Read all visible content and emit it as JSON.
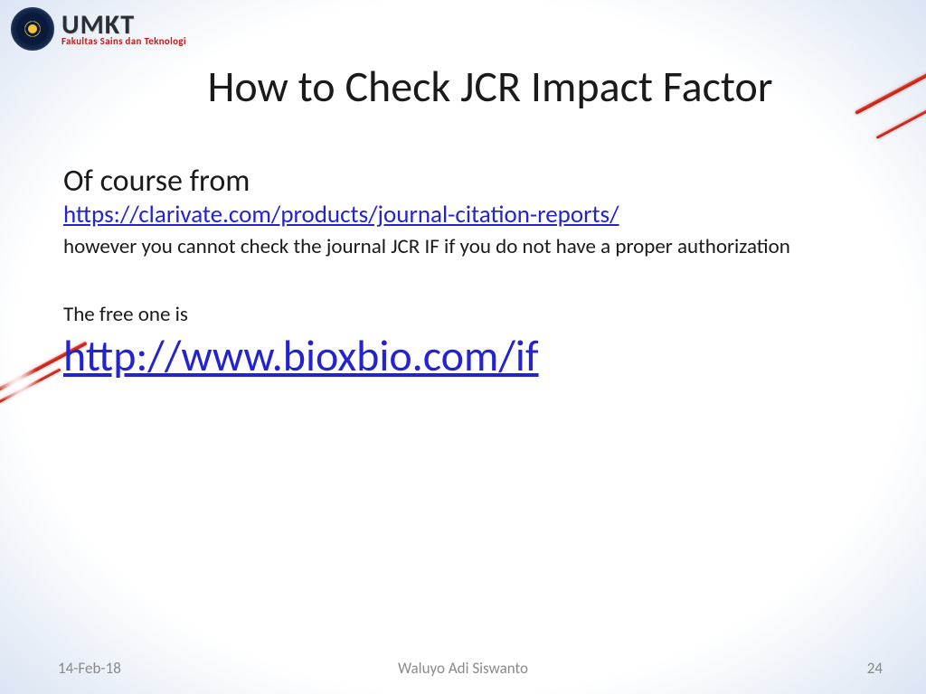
{
  "logo": {
    "main": "UMKT",
    "sub": "Fakultas Sains dan Teknologi"
  },
  "title": "How to Check JCR Impact Factor",
  "content": {
    "lead": "Of course from",
    "link1_text": "https://clarivate.com/products/journal-citation-reports/",
    "note": "however you cannot check the journal JCR IF if you do not have a proper authorization",
    "lead2": "The free one is",
    "link2_text": "http://www.bioxbio.com/if"
  },
  "footer": {
    "date": "14-Feb-18",
    "author": "Waluyo Adi Siswanto",
    "page": "24"
  },
  "colors": {
    "link": "#2323d0",
    "text": "#1a1a1a",
    "footer": "#8a8a8a",
    "logo_sub": "#c11a1a",
    "accent_red": "#d0281c",
    "bg_edge": "#9fb6d8"
  },
  "typography": {
    "title_fontsize": 48,
    "lead_fontsize": 34,
    "link1_fontsize": 27,
    "note_fontsize": 23,
    "link2_fontsize": 48,
    "footer_fontsize": 17,
    "font_family": "Calibri"
  }
}
